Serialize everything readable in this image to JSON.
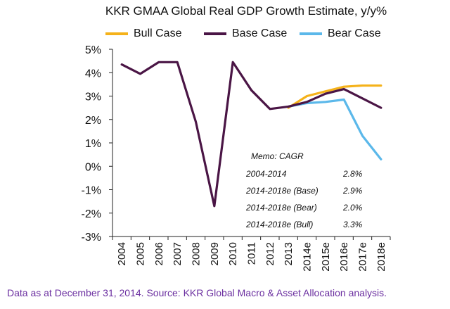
{
  "title": "KKR GMAA Global Real GDP Growth Estimate, y/y%",
  "source": "Data as at December 31, 2014. Source: KKR Global Macro & Asset Allocation analysis.",
  "colors": {
    "bull": "#f5b21a",
    "base": "#4a1545",
    "bear": "#5bb8ea",
    "source_text": "#6b2fa0"
  },
  "legend": [
    {
      "label": "Bull Case",
      "color": "#f5b21a"
    },
    {
      "label": "Base Case",
      "color": "#4a1545"
    },
    {
      "label": "Bear Case",
      "color": "#5bb8ea"
    }
  ],
  "memo": {
    "title": "Memo: CAGR",
    "rows": [
      {
        "period": "2004-2014",
        "value": "2.8%"
      },
      {
        "period": "2014-2018e (Base)",
        "value": "2.9%"
      },
      {
        "period": "2014-2018e (Bear)",
        "value": "2.0%"
      },
      {
        "period": "2014-2018e (Bull)",
        "value": "3.3%"
      }
    ]
  },
  "chart_data": {
    "type": "line",
    "title": "KKR GMAA Global Real GDP Growth Estimate, y/y%",
    "categories": [
      "2004",
      "2005",
      "2006",
      "2007",
      "2008",
      "2009",
      "2010",
      "2011",
      "2012",
      "2013",
      "2014e",
      "2015e",
      "2016e",
      "2017e",
      "2018e"
    ],
    "y_ticks": [
      "5%",
      "4%",
      "3%",
      "2%",
      "1%",
      "0%",
      "-1%",
      "-2%",
      "-3%"
    ],
    "ylim": [
      -3,
      5
    ],
    "grid": false,
    "legend_position": "top",
    "series": [
      {
        "name": "Bull Case",
        "values": [
          null,
          null,
          null,
          null,
          null,
          null,
          null,
          null,
          null,
          2.5,
          3.0,
          3.2,
          3.4,
          3.45,
          3.45
        ]
      },
      {
        "name": "Base Case",
        "values": [
          4.35,
          3.95,
          4.45,
          4.45,
          1.9,
          -1.7,
          4.45,
          3.25,
          2.45,
          2.55,
          2.75,
          3.1,
          3.3,
          2.9,
          2.5
        ]
      },
      {
        "name": "Bear Case",
        "values": [
          null,
          null,
          null,
          null,
          null,
          null,
          null,
          null,
          null,
          2.55,
          2.7,
          2.75,
          2.85,
          1.3,
          0.3
        ]
      }
    ]
  }
}
